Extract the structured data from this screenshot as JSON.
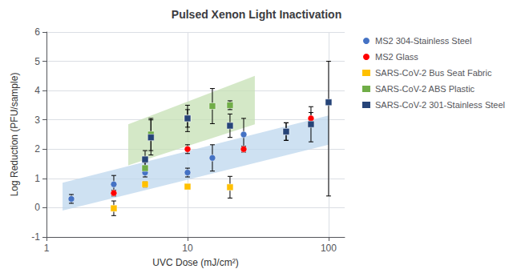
{
  "chart_data": {
    "type": "scatter",
    "title": "Pulsed Xenon Light Inactivation",
    "xlabel": "UVC Dose (mJ/cm²)",
    "ylabel": "Log Reduction (PFU/sample)",
    "log": "x",
    "xlim": [
      1,
      130
    ],
    "ylim": [
      -1.0,
      6.0
    ],
    "xticks": [
      1,
      10,
      100
    ],
    "yticks": [
      -1,
      0,
      1,
      2,
      3,
      4,
      5,
      6
    ],
    "grid": true,
    "legend": "upper right",
    "series": [
      {
        "name": "MS2 304-Stainless Steel",
        "color": "#4472C4",
        "marker": "circle",
        "x": [
          1.5,
          3.0,
          5.0,
          10.0,
          15.0,
          25.0,
          50.0
        ],
        "values": [
          0.3,
          0.8,
          1.2,
          1.2,
          1.7,
          2.5,
          2.6
        ],
        "error_low": [
          0.15,
          0.3,
          0.15,
          0.15,
          0.45,
          0.55,
          0.3
        ],
        "error_high": [
          0.15,
          0.3,
          0.15,
          0.15,
          0.45,
          0.55,
          0.3
        ]
      },
      {
        "name": "MS2 Glass",
        "color": "#FF0000",
        "marker": "circle",
        "x": [
          3.0,
          10.0,
          25.0,
          75.0
        ],
        "values": [
          0.5,
          2.0,
          2.0,
          3.05
        ],
        "error_low": [
          0.1,
          0.15,
          0.1,
          0.2
        ],
        "error_high": [
          0.1,
          0.15,
          0.1,
          0.2
        ]
      },
      {
        "name": "SARS-CoV-2 Bus Seat Fabric",
        "color": "#FFC000",
        "marker": "square",
        "x": [
          3.0,
          5.0,
          10.0,
          20.0
        ],
        "values": [
          -0.02,
          0.8,
          0.72,
          0.7
        ],
        "error_low": [
          0.25,
          0.1,
          0.07,
          0.37
        ],
        "error_high": [
          0.25,
          0.1,
          0.07,
          0.37
        ]
      },
      {
        "name": "SARS-CoV-2 ABS Plastic",
        "color": "#70AD47",
        "marker": "square",
        "x": [
          5.0,
          5.5,
          10.0,
          15.0,
          20.0
        ],
        "values": [
          1.35,
          2.5,
          3.05,
          3.47,
          3.5
        ],
        "error_low": [
          0.2,
          0.55,
          0.45,
          0.6,
          0.15
        ],
        "error_high": [
          0.2,
          0.55,
          0.45,
          0.6,
          0.15
        ]
      },
      {
        "name": "SARS-CoV-2 301-Stainless Steel",
        "color": "#264478",
        "marker": "square",
        "x": [
          5.0,
          5.5,
          10.0,
          20.0,
          50.0,
          75.0,
          100.0
        ],
        "values": [
          1.65,
          2.4,
          3.05,
          2.8,
          2.6,
          2.85,
          3.6
        ],
        "error_low": [
          0.3,
          0.6,
          0.3,
          0.4,
          0.3,
          0.6,
          3.2
        ],
        "error_high": [
          0.3,
          0.6,
          0.3,
          0.4,
          0.3,
          0.6,
          1.4
        ]
      }
    ],
    "bands": [
      {
        "color": "#BDD7EE",
        "x": [
          1.3,
          100.0
        ],
        "low": [
          -0.1,
          2.15
        ],
        "high": [
          0.85,
          3.15
        ]
      },
      {
        "color": "#C6E0B4",
        "x": [
          3.8,
          30.0
        ],
        "low": [
          1.45,
          2.85
        ],
        "high": [
          2.85,
          4.5
        ]
      }
    ]
  }
}
